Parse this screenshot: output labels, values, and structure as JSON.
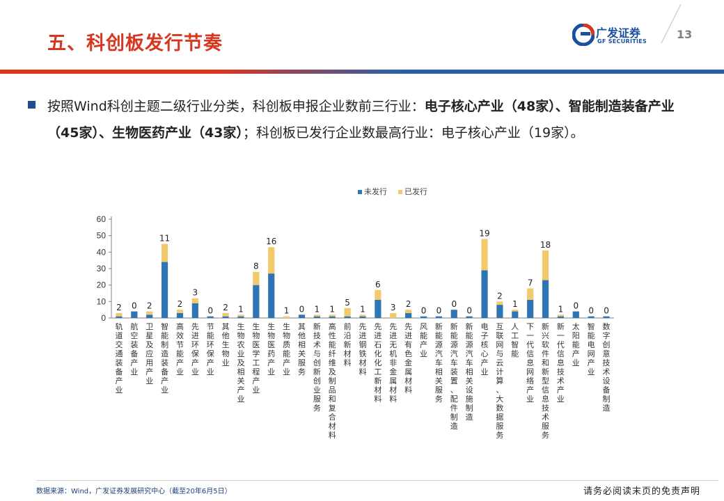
{
  "header": {
    "title": "五、科创板发行节奏",
    "logo_cn": "广发证券",
    "logo_en": "GF SECURITIES",
    "page_number": "13"
  },
  "body": {
    "para_part1": "按照Wind科创主题二级行业分类，科创板申报企业数前三行业：",
    "para_bold": "电子核心产业（48家）、智能制造装备产业（45家）、生物医药产业（43家）",
    "para_part2": "；科创板已发行企业数最高行业：电子核心产业（19家）。"
  },
  "chart_data": {
    "type": "bar",
    "stacked": true,
    "legend_position": "top-center",
    "ylim": [
      0,
      60
    ],
    "yticks": [
      0,
      10,
      20,
      30,
      40,
      50,
      60
    ],
    "grid": false,
    "categories": [
      "轨道交通装备产业",
      "航空装备产业",
      "卫星及应用产业",
      "智能制造装备产业",
      "高效节能产业",
      "先进环保产业",
      "节能环保产业",
      "其他生物业",
      "生物农业及相关产业",
      "生物医学工程产业",
      "生物医药产业",
      "生物质能产业",
      "其他相关服务",
      "新技术与创新创业服务",
      "高性能纤维及制品和复合材料",
      "前沿新材料",
      "先进钢铁材料",
      "先进石化化工新材料",
      "先进无机非金属材料",
      "先进有色金属材料",
      "风能产业",
      "新能源汽车相关服务",
      "新能源汽车装置、配件制造",
      "新能源汽车相关设施制造",
      "电子核心产业",
      "互联网与云计算、大数据服务",
      "人工智能",
      "下一代信息网络产业",
      "新兴软件和新型信息技术服务",
      "新一代信息技术产业",
      "太阳能产业",
      "智能电网产业",
      "数字创意技术设备制造"
    ],
    "series": [
      {
        "name": "未发行",
        "color": "#2e75b6",
        "values": [
          1,
          4,
          2,
          34,
          3,
          9,
          1,
          1,
          1,
          20,
          27,
          0,
          2,
          1,
          1,
          1,
          1,
          11,
          0,
          3,
          1,
          1,
          5,
          1,
          29,
          8,
          4,
          11,
          23,
          1,
          4,
          1,
          1
        ]
      },
      {
        "name": "已发行",
        "color": "#f2c96b",
        "values": [
          2,
          0,
          2,
          11,
          2,
          3,
          0,
          2,
          1,
          8,
          16,
          1,
          0,
          1,
          1,
          5,
          1,
          6,
          3,
          2,
          0,
          0,
          0,
          0,
          19,
          2,
          1,
          7,
          18,
          1,
          0,
          0,
          0
        ]
      }
    ],
    "data_labels": [
      "2",
      "0",
      "2",
      "11",
      "2",
      "3",
      "0",
      "2",
      "1",
      "8",
      "16",
      "1",
      "0",
      "1",
      "1",
      "5",
      "1",
      "6",
      "3",
      "2",
      "0",
      "0",
      "0",
      "0",
      "19",
      "2",
      "1",
      "7",
      "18",
      "1",
      "0",
      "0",
      "0"
    ]
  },
  "footer": {
    "source": "数据来源：Wind，广发证券发展研究中心（截至20年6月5日）",
    "disclaimer": "请务必阅读末页的免责声明"
  },
  "colors": {
    "title_red": "#d9361f",
    "brand_blue": "#1b4fa0"
  }
}
